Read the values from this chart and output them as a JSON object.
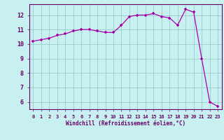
{
  "x": [
    0,
    1,
    2,
    3,
    4,
    5,
    6,
    7,
    8,
    9,
    10,
    11,
    12,
    13,
    14,
    15,
    16,
    17,
    18,
    19,
    20,
    21,
    22,
    23
  ],
  "y": [
    10.2,
    10.3,
    10.4,
    10.6,
    10.7,
    10.9,
    11.0,
    11.0,
    10.9,
    10.8,
    10.8,
    11.3,
    11.9,
    12.0,
    12.0,
    12.1,
    11.9,
    11.8,
    11.3,
    12.4,
    12.2,
    9.0,
    6.0,
    5.7
  ],
  "line_color": "#aa00aa",
  "marker": "+",
  "bg_color": "#c8f0f0",
  "grid_color": "#99cccc",
  "xlabel": "Windchill (Refroidissement éolien,°C)",
  "xlim": [
    -0.5,
    23.5
  ],
  "ylim": [
    5.5,
    12.75
  ],
  "yticks": [
    6,
    7,
    8,
    9,
    10,
    11,
    12
  ],
  "xticks": [
    0,
    1,
    2,
    3,
    4,
    5,
    6,
    7,
    8,
    9,
    10,
    11,
    12,
    13,
    14,
    15,
    16,
    17,
    18,
    19,
    20,
    21,
    22,
    23
  ],
  "line_color2": "#990099",
  "tick_color": "#660066",
  "axis_color": "#660066"
}
